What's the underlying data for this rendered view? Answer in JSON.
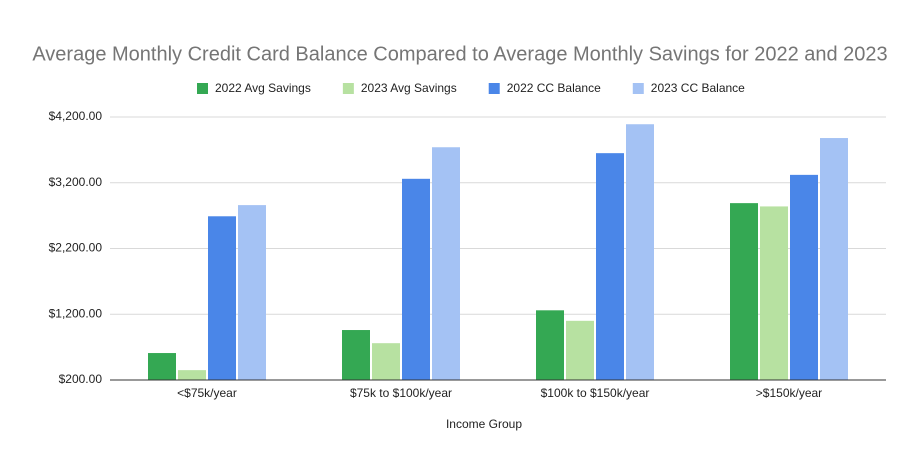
{
  "chart_data": {
    "type": "bar",
    "title": "Average Monthly Credit Card Balance Compared to Average Monthly Savings for 2022 and 2023",
    "x_label": "Income Group",
    "categories": [
      "<$75k/year",
      "$75k to $100k/year",
      "$100k to $150k/year",
      ">$150k/year"
    ],
    "series": [
      {
        "name": "2022 Avg Savings",
        "color": "#34a853",
        "values": [
          610,
          960,
          1260,
          2890
        ]
      },
      {
        "name": "2023 Avg Savings",
        "color": "#b7e1a1",
        "values": [
          350,
          760,
          1100,
          2840
        ]
      },
      {
        "name": "2022 CC Balance",
        "color": "#4a86e8",
        "values": [
          2690,
          3260,
          3650,
          3320
        ]
      },
      {
        "name": "2023 CC Balance",
        "color": "#a4c2f4",
        "values": [
          2860,
          3740,
          4090,
          3880
        ]
      }
    ],
    "ylim": [
      200,
      4200
    ],
    "yticks": [
      {
        "value": 200,
        "label": "$200.00"
      },
      {
        "value": 1200,
        "label": "$1,200.00"
      },
      {
        "value": 2200,
        "label": "$2,200.00"
      },
      {
        "value": 3200,
        "label": "$3,200.00"
      },
      {
        "value": 4200,
        "label": "$4,200.00"
      }
    ],
    "grid": true,
    "legend": "top"
  }
}
